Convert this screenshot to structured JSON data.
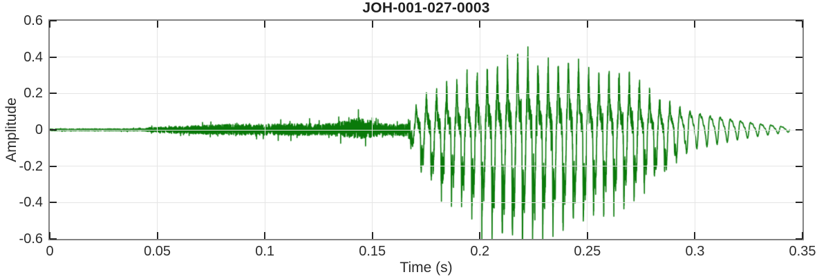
{
  "style": {
    "background": "#ffffff",
    "axis_box_color": "#828282",
    "tick_mark_color": "#262626",
    "text_color": "#2b2b2b",
    "grid_color": "#e5e5e5",
    "waveform_color": "#0a7a0a"
  },
  "chart_data": {
    "type": "line",
    "title": "JOH-001-027-0003",
    "xlabel": "Time (s)",
    "ylabel": "Amplitude",
    "xlim": [
      0,
      0.35
    ],
    "ylim": [
      -0.6,
      0.6
    ],
    "xticks": [
      0,
      0.05,
      0.1,
      0.15,
      0.2,
      0.25,
      0.3,
      0.35
    ],
    "xtick_labels": [
      "0",
      "0.05",
      "0.1",
      "0.15",
      "0.2",
      "0.25",
      "0.3",
      "0.35"
    ],
    "yticks": [
      0.6,
      0.4,
      0.2,
      0,
      -0.2,
      -0.4,
      -0.6
    ],
    "ytick_labels": [
      "0.6",
      "0.4",
      "0.2",
      "0",
      "-0.2",
      "-0.4",
      "-0.6"
    ],
    "grid": true,
    "legend": null,
    "series_name": "speech waveform",
    "description": "Audio amplitude vs time: near-silence until 0.045 s, low random noise until 0.167 s with a small bump near 0.145 s, a strong quasi-periodic voiced burst (~212 Hz) from 0.168-0.285 s peaking at +0.41 and -0.57 near 0.22 s, then a smoothly decaying sinusoidal tail ending at 0.344 s",
    "signal_end_s": 0.344,
    "envelope_points": [
      [
        0.0,
        0.005,
        -0.005
      ],
      [
        0.044,
        0.006,
        -0.006
      ],
      [
        0.046,
        0.012,
        -0.012
      ],
      [
        0.06,
        0.02,
        -0.02
      ],
      [
        0.08,
        0.03,
        -0.028
      ],
      [
        0.1,
        0.032,
        -0.03
      ],
      [
        0.118,
        0.036,
        -0.033
      ],
      [
        0.126,
        0.03,
        -0.028
      ],
      [
        0.136,
        0.048,
        -0.04
      ],
      [
        0.145,
        0.07,
        -0.05
      ],
      [
        0.152,
        0.042,
        -0.038
      ],
      [
        0.158,
        0.03,
        -0.03
      ],
      [
        0.1665,
        0.035,
        -0.035
      ],
      [
        0.169,
        0.09,
        -0.1
      ],
      [
        0.172,
        0.16,
        -0.22
      ],
      [
        0.176,
        0.19,
        -0.26
      ],
      [
        0.18,
        0.21,
        -0.3
      ],
      [
        0.188,
        0.24,
        -0.38
      ],
      [
        0.196,
        0.28,
        -0.43
      ],
      [
        0.205,
        0.31,
        -0.52
      ],
      [
        0.214,
        0.36,
        -0.57
      ],
      [
        0.221,
        0.41,
        -0.56
      ],
      [
        0.229,
        0.33,
        -0.54
      ],
      [
        0.243,
        0.37,
        -0.5
      ],
      [
        0.252,
        0.3,
        -0.46
      ],
      [
        0.262,
        0.3,
        -0.42
      ],
      [
        0.271,
        0.28,
        -0.39
      ],
      [
        0.278,
        0.22,
        -0.3
      ],
      [
        0.284,
        0.17,
        -0.23
      ],
      [
        0.292,
        0.13,
        -0.15
      ],
      [
        0.3,
        0.095,
        -0.105
      ],
      [
        0.31,
        0.07,
        -0.08
      ],
      [
        0.32,
        0.05,
        -0.055
      ],
      [
        0.33,
        0.033,
        -0.035
      ],
      [
        0.338,
        0.022,
        -0.022
      ],
      [
        0.344,
        0.012,
        -0.012
      ]
    ],
    "waveform_model": {
      "f0_hz": 212,
      "seed": 20,
      "noise_mix": [
        [
          0,
          1
        ],
        [
          0.1675,
          1
        ],
        [
          0.1695,
          0.28
        ],
        [
          0.285,
          0.2
        ],
        [
          0.298,
          0.06
        ],
        [
          0.344,
          0.04
        ]
      ],
      "pulse_amount": [
        [
          0,
          1
        ],
        [
          0.28,
          1
        ],
        [
          0.3,
          0.15
        ],
        [
          0.344,
          0.05
        ]
      ]
    }
  }
}
